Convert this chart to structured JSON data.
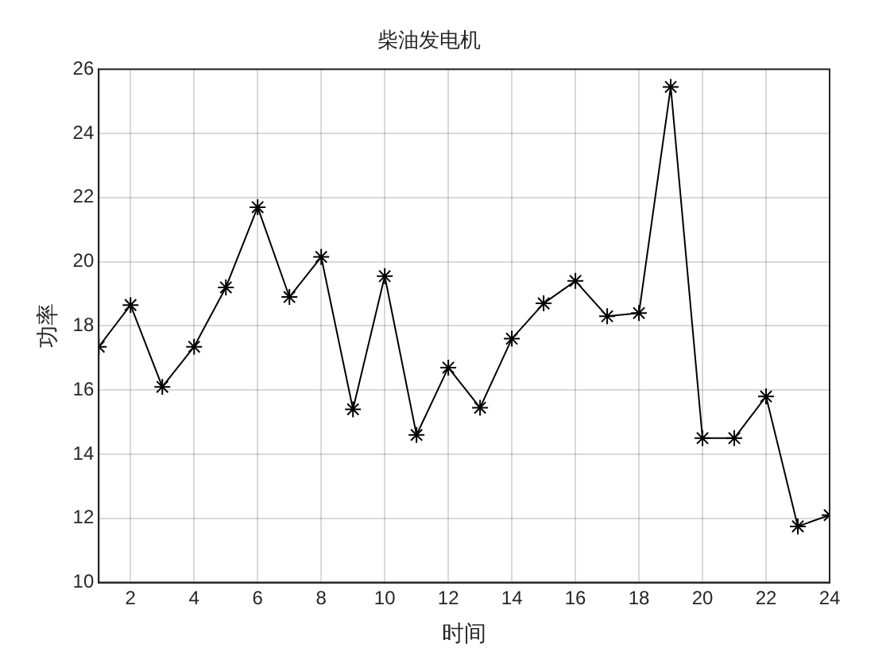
{
  "chart_data": {
    "type": "line",
    "title": "柴油发电机",
    "xlabel": "时间",
    "ylabel": "功率",
    "x": [
      1,
      2,
      3,
      4,
      5,
      6,
      7,
      8,
      9,
      10,
      11,
      12,
      13,
      14,
      15,
      16,
      17,
      18,
      19,
      20,
      21,
      22,
      23,
      24
    ],
    "series": [
      {
        "color": "#000000",
        "values": [
          17.35,
          18.65,
          16.1,
          17.35,
          19.2,
          21.7,
          18.9,
          20.15,
          15.4,
          19.55,
          14.6,
          16.7,
          15.45,
          17.6,
          18.7,
          19.4,
          18.3,
          18.4,
          25.45,
          14.5,
          14.5,
          15.8,
          11.75,
          12.1
        ]
      }
    ],
    "xlim": [
      1,
      24
    ],
    "xticks": [
      2,
      4,
      6,
      8,
      10,
      12,
      14,
      16,
      18,
      20,
      22,
      24
    ],
    "ylim": [
      10,
      26
    ],
    "yticks": [
      10,
      12,
      14,
      16,
      18,
      20,
      22,
      24,
      26
    ],
    "grid": true,
    "legend": false,
    "marker": "cross",
    "line_style": "solid"
  }
}
